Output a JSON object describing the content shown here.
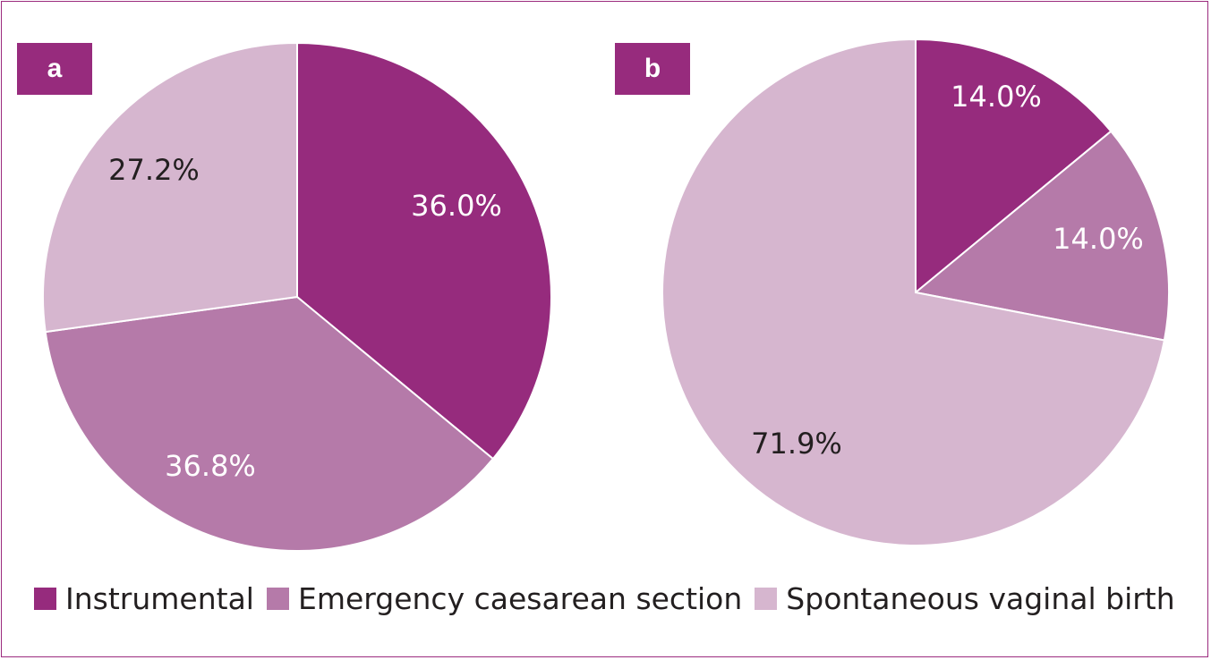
{
  "colors": {
    "instrumental": "#962b7d",
    "emergency": "#b57aa9",
    "spontaneous": "#d6b6cf",
    "border": "#9b2b7e"
  },
  "chart_data": [
    {
      "type": "pie",
      "panel": "a",
      "slices": [
        {
          "category": "Instrumental",
          "value": 36.0,
          "label": "36.0%"
        },
        {
          "category": "Emergency caesarean section",
          "value": 36.8,
          "label": "36.8%"
        },
        {
          "category": "Spontaneous vaginal birth",
          "value": 27.2,
          "label": "27.2%"
        }
      ]
    },
    {
      "type": "pie",
      "panel": "b",
      "slices": [
        {
          "category": "Instrumental",
          "value": 14.0,
          "label": "14.0%"
        },
        {
          "category": "Emergency caesarean section",
          "value": 14.0,
          "label": "14.0%"
        },
        {
          "category": "Spontaneous vaginal birth",
          "value": 71.9,
          "label": "71.9%"
        }
      ]
    }
  ],
  "legend": {
    "position": "bottom",
    "items": [
      "Instrumental",
      "Emergency caesarean section",
      "Spontaneous vaginal birth"
    ]
  }
}
